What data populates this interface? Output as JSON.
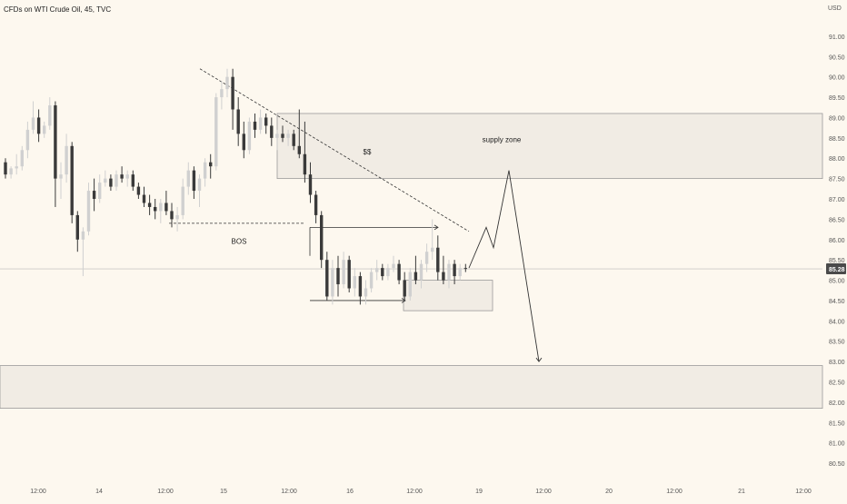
{
  "header": {
    "symbol_title": "CFDs on WTI Crude Oil, 45, TVC",
    "currency": "USD"
  },
  "colors": {
    "background": "#fdf8ef",
    "candle_up": "#d0d0d0",
    "candle_down": "#3a3a3a",
    "zone_fill": "#f1ece4",
    "zone_border": "#9a9a9a",
    "price_badge": "#4a4a4a",
    "price_badge_text": "#ffffff"
  },
  "chart_data": {
    "type": "candlestick",
    "instrument": "CFDs on WTI Crude Oil",
    "timeframe": "45",
    "source": "TVC",
    "ylim": [
      80.3,
      91.4
    ],
    "y_ticks": [
      "91.00",
      "90.50",
      "90.00",
      "89.50",
      "89.00",
      "88.50",
      "88.00",
      "87.50",
      "87.00",
      "86.50",
      "86.00",
      "85.50",
      "85.00",
      "84.50",
      "84.00",
      "83.50",
      "83.00",
      "82.50",
      "82.00",
      "81.50",
      "81.00",
      "80.50"
    ],
    "x_ticks": [
      "12:00",
      "14",
      "12:00",
      "15",
      "12:00",
      "16",
      "12:00",
      "19",
      "12:00",
      "20",
      "12:00",
      "21",
      "12:00"
    ],
    "current_price": "85.28",
    "candles": [
      {
        "o": 87.9,
        "h": 88.0,
        "l": 87.5,
        "c": 87.6
      },
      {
        "o": 87.6,
        "h": 87.8,
        "l": 87.5,
        "c": 87.75
      },
      {
        "o": 87.75,
        "h": 88.1,
        "l": 87.6,
        "c": 87.8
      },
      {
        "o": 87.8,
        "h": 88.3,
        "l": 87.7,
        "c": 88.2
      },
      {
        "o": 88.2,
        "h": 88.9,
        "l": 88.0,
        "c": 88.7
      },
      {
        "o": 88.7,
        "h": 89.4,
        "l": 88.6,
        "c": 89.0
      },
      {
        "o": 89.0,
        "h": 89.2,
        "l": 88.4,
        "c": 88.6
      },
      {
        "o": 88.6,
        "h": 88.9,
        "l": 88.5,
        "c": 88.8
      },
      {
        "o": 88.8,
        "h": 89.5,
        "l": 88.7,
        "c": 89.3
      },
      {
        "o": 89.3,
        "h": 89.4,
        "l": 86.8,
        "c": 87.5
      },
      {
        "o": 87.5,
        "h": 87.9,
        "l": 87.0,
        "c": 87.6
      },
      {
        "o": 87.6,
        "h": 88.6,
        "l": 87.4,
        "c": 88.3
      },
      {
        "o": 88.3,
        "h": 88.4,
        "l": 86.4,
        "c": 86.6
      },
      {
        "o": 86.6,
        "h": 86.7,
        "l": 85.7,
        "c": 86.0
      },
      {
        "o": 86.0,
        "h": 86.3,
        "l": 85.1,
        "c": 86.2
      },
      {
        "o": 86.2,
        "h": 87.4,
        "l": 86.1,
        "c": 87.2
      },
      {
        "o": 87.2,
        "h": 87.5,
        "l": 86.7,
        "c": 87.0
      },
      {
        "o": 87.0,
        "h": 87.6,
        "l": 86.9,
        "c": 87.4
      },
      {
        "o": 87.4,
        "h": 87.7,
        "l": 87.3,
        "c": 87.5
      },
      {
        "o": 87.5,
        "h": 87.6,
        "l": 87.2,
        "c": 87.3
      },
      {
        "o": 87.3,
        "h": 87.7,
        "l": 87.2,
        "c": 87.6
      },
      {
        "o": 87.6,
        "h": 87.8,
        "l": 87.4,
        "c": 87.5
      },
      {
        "o": 87.5,
        "h": 87.7,
        "l": 87.3,
        "c": 87.6
      },
      {
        "o": 87.6,
        "h": 87.7,
        "l": 87.2,
        "c": 87.3
      },
      {
        "o": 87.3,
        "h": 87.4,
        "l": 87.0,
        "c": 87.1
      },
      {
        "o": 87.1,
        "h": 87.3,
        "l": 86.8,
        "c": 86.9
      },
      {
        "o": 86.9,
        "h": 87.1,
        "l": 86.6,
        "c": 86.8
      },
      {
        "o": 86.8,
        "h": 87.0,
        "l": 86.5,
        "c": 86.7
      },
      {
        "o": 86.7,
        "h": 87.0,
        "l": 86.4,
        "c": 86.9
      },
      {
        "o": 86.9,
        "h": 87.2,
        "l": 86.6,
        "c": 86.7
      },
      {
        "o": 86.7,
        "h": 86.9,
        "l": 86.3,
        "c": 86.5
      },
      {
        "o": 86.5,
        "h": 86.8,
        "l": 86.2,
        "c": 86.6
      },
      {
        "o": 86.6,
        "h": 87.5,
        "l": 86.5,
        "c": 87.3
      },
      {
        "o": 87.3,
        "h": 87.9,
        "l": 87.1,
        "c": 87.7
      },
      {
        "o": 87.7,
        "h": 87.8,
        "l": 87.0,
        "c": 87.2
      },
      {
        "o": 87.2,
        "h": 87.6,
        "l": 86.8,
        "c": 87.5
      },
      {
        "o": 87.5,
        "h": 88.0,
        "l": 87.3,
        "c": 87.9
      },
      {
        "o": 87.9,
        "h": 88.1,
        "l": 87.5,
        "c": 87.8
      },
      {
        "o": 87.8,
        "h": 89.6,
        "l": 87.7,
        "c": 89.5
      },
      {
        "o": 89.5,
        "h": 89.9,
        "l": 89.2,
        "c": 89.7
      },
      {
        "o": 89.7,
        "h": 90.2,
        "l": 89.5,
        "c": 90.0
      },
      {
        "o": 90.0,
        "h": 90.2,
        "l": 88.7,
        "c": 89.2
      },
      {
        "o": 89.2,
        "h": 89.5,
        "l": 88.3,
        "c": 88.6
      },
      {
        "o": 88.6,
        "h": 88.9,
        "l": 88.0,
        "c": 88.2
      },
      {
        "o": 88.2,
        "h": 89.0,
        "l": 88.1,
        "c": 88.9
      },
      {
        "o": 88.9,
        "h": 89.1,
        "l": 88.5,
        "c": 88.7
      },
      {
        "o": 88.7,
        "h": 89.2,
        "l": 88.6,
        "c": 89.0
      },
      {
        "o": 89.0,
        "h": 89.1,
        "l": 88.6,
        "c": 88.8
      },
      {
        "o": 88.8,
        "h": 89.0,
        "l": 88.3,
        "c": 88.5
      },
      {
        "o": 88.5,
        "h": 88.7,
        "l": 88.2,
        "c": 88.6
      },
      {
        "o": 88.6,
        "h": 88.8,
        "l": 88.4,
        "c": 88.5
      },
      {
        "o": 88.5,
        "h": 88.7,
        "l": 88.3,
        "c": 88.6
      },
      {
        "o": 88.6,
        "h": 88.7,
        "l": 88.2,
        "c": 88.3
      },
      {
        "o": 88.3,
        "h": 89.2,
        "l": 88.0,
        "c": 88.1
      },
      {
        "o": 88.1,
        "h": 88.9,
        "l": 87.4,
        "c": 87.6
      },
      {
        "o": 87.6,
        "h": 87.9,
        "l": 86.9,
        "c": 87.1
      },
      {
        "o": 87.1,
        "h": 87.2,
        "l": 86.4,
        "c": 86.6
      },
      {
        "o": 86.6,
        "h": 86.7,
        "l": 85.3,
        "c": 85.5
      },
      {
        "o": 85.5,
        "h": 85.7,
        "l": 84.5,
        "c": 84.6
      },
      {
        "o": 84.6,
        "h": 85.5,
        "l": 84.4,
        "c": 85.3
      },
      {
        "o": 85.3,
        "h": 85.6,
        "l": 84.6,
        "c": 84.9
      },
      {
        "o": 84.9,
        "h": 85.7,
        "l": 84.8,
        "c": 85.5
      },
      {
        "o": 85.5,
        "h": 85.6,
        "l": 84.7,
        "c": 84.8
      },
      {
        "o": 84.8,
        "h": 85.3,
        "l": 84.6,
        "c": 85.1
      },
      {
        "o": 85.1,
        "h": 85.2,
        "l": 84.4,
        "c": 84.6
      },
      {
        "o": 84.6,
        "h": 85.0,
        "l": 84.4,
        "c": 84.8
      },
      {
        "o": 84.8,
        "h": 85.3,
        "l": 84.7,
        "c": 85.2
      },
      {
        "o": 85.2,
        "h": 85.5,
        "l": 85.0,
        "c": 85.3
      },
      {
        "o": 85.3,
        "h": 85.4,
        "l": 85.0,
        "c": 85.1
      },
      {
        "o": 85.1,
        "h": 85.4,
        "l": 85.0,
        "c": 85.3
      },
      {
        "o": 85.3,
        "h": 85.6,
        "l": 85.2,
        "c": 85.4
      },
      {
        "o": 85.4,
        "h": 85.5,
        "l": 84.9,
        "c": 85.0
      },
      {
        "o": 85.0,
        "h": 85.2,
        "l": 84.5,
        "c": 84.6
      },
      {
        "o": 84.6,
        "h": 85.3,
        "l": 84.5,
        "c": 85.2
      },
      {
        "o": 85.2,
        "h": 85.6,
        "l": 84.9,
        "c": 85.0
      },
      {
        "o": 85.0,
        "h": 85.5,
        "l": 84.8,
        "c": 85.4
      },
      {
        "o": 85.4,
        "h": 85.9,
        "l": 85.2,
        "c": 85.7
      },
      {
        "o": 85.7,
        "h": 86.5,
        "l": 85.5,
        "c": 85.8
      },
      {
        "o": 85.8,
        "h": 86.1,
        "l": 85.0,
        "c": 85.2
      },
      {
        "o": 85.2,
        "h": 85.6,
        "l": 84.9,
        "c": 85.0
      },
      {
        "o": 85.0,
        "h": 85.5,
        "l": 84.8,
        "c": 85.4
      },
      {
        "o": 85.4,
        "h": 85.5,
        "l": 84.9,
        "c": 85.1
      },
      {
        "o": 85.1,
        "h": 85.4,
        "l": 85.0,
        "c": 85.3
      },
      {
        "o": 85.3,
        "h": 85.4,
        "l": 85.2,
        "c": 85.28
      }
    ],
    "annotations": {
      "labels": [
        "$$",
        "BOS",
        "supply zone"
      ],
      "supply_zone": {
        "top": 89.1,
        "bottom": 87.5
      },
      "demand_zone": {
        "top": 82.9,
        "bottom": 81.85
      },
      "small_zone": {
        "top": 85.0,
        "bottom": 84.25
      },
      "projected_path": [
        85.3,
        86.3,
        85.8,
        87.7,
        83.0
      ]
    },
    "grid": false,
    "legend": "none"
  }
}
